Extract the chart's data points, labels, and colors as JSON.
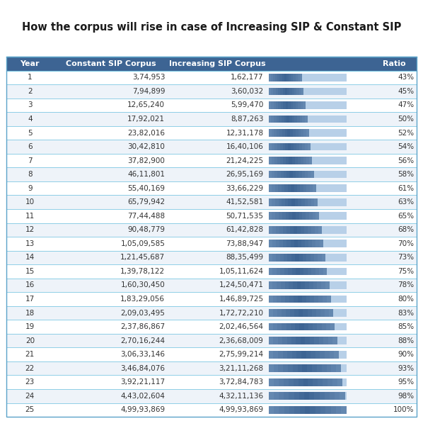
{
  "title": "How the corpus will rise in case of Increasing SIP & Constant SIP",
  "headers": [
    "Year",
    "Constant SIP Corpus",
    "Increasing SIP Corpus",
    "Ratio"
  ],
  "rows": [
    [
      1,
      "3,74,953",
      "1,62,177",
      43
    ],
    [
      2,
      "7,94,899",
      "3,60,032",
      45
    ],
    [
      3,
      "12,65,240",
      "5,99,470",
      47
    ],
    [
      4,
      "17,92,021",
      "8,87,263",
      50
    ],
    [
      5,
      "23,82,016",
      "12,31,178",
      52
    ],
    [
      6,
      "30,42,810",
      "16,40,106",
      54
    ],
    [
      7,
      "37,82,900",
      "21,24,225",
      56
    ],
    [
      8,
      "46,11,801",
      "26,95,169",
      58
    ],
    [
      9,
      "55,40,169",
      "33,66,229",
      61
    ],
    [
      10,
      "65,79,942",
      "41,52,581",
      63
    ],
    [
      11,
      "77,44,488",
      "50,71,535",
      65
    ],
    [
      12,
      "90,48,779",
      "61,42,828",
      68
    ],
    [
      13,
      "1,05,09,585",
      "73,88,947",
      70
    ],
    [
      14,
      "1,21,45,687",
      "88,35,499",
      73
    ],
    [
      15,
      "1,39,78,122",
      "1,05,11,624",
      75
    ],
    [
      16,
      "1,60,30,450",
      "1,24,50,471",
      78
    ],
    [
      17,
      "1,83,29,056",
      "1,46,89,725",
      80
    ],
    [
      18,
      "2,09,03,495",
      "1,72,72,210",
      83
    ],
    [
      19,
      "2,37,86,867",
      "2,02,46,564",
      85
    ],
    [
      20,
      "2,70,16,244",
      "2,36,68,009",
      88
    ],
    [
      21,
      "3,06,33,146",
      "2,75,99,214",
      90
    ],
    [
      22,
      "3,46,84,076",
      "3,21,11,268",
      93
    ],
    [
      23,
      "3,92,21,117",
      "3,72,84,783",
      95
    ],
    [
      24,
      "4,43,02,604",
      "4,32,11,136",
      98
    ],
    [
      25,
      "4,99,93,869",
      "4,99,93,869",
      100
    ]
  ],
  "header_bg": "#3d6493",
  "header_fg": "#ffffff",
  "row_bg_even": "#ffffff",
  "row_bg_odd": "#eef3f9",
  "divider_color": "#7ec8e3",
  "text_color": "#333333",
  "bar_color_dark": "#3d6493",
  "bar_color_light": "#b8d0e8",
  "title_color": "#1a1a1a",
  "outer_border_color": "#5ba3c9"
}
